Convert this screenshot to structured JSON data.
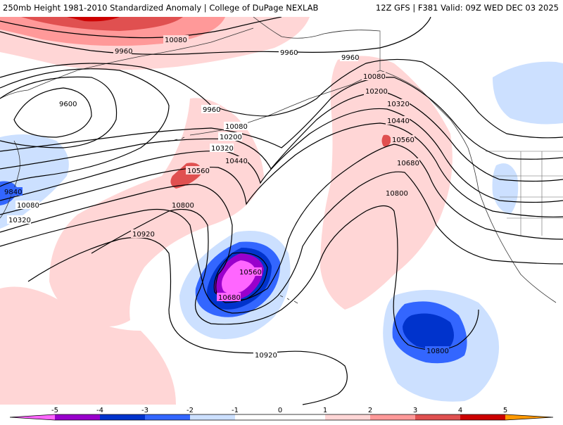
{
  "header": {
    "title_left": "250mb Height 1981-2010 Standardized Anomaly | College of DuPage NEXLAB",
    "title_right": "12Z GFS | F381 Valid: 09Z WED DEC 03 2025"
  },
  "colors": {
    "neg5": "#ff66ff",
    "neg4": "#9900cc",
    "neg3": "#0033cc",
    "neg2": "#3366ff",
    "neg1": "#cce0ff",
    "pos1": "#ffd6d6",
    "pos2": "#ff9999",
    "pos3": "#e05050",
    "pos4": "#cc0000",
    "pos5": "#ff9900"
  },
  "contour_labels": [
    {
      "id": "c10080-top",
      "text": "10080"
    },
    {
      "id": "c9960-left",
      "text": "9960"
    },
    {
      "id": "c9960-mid",
      "text": "9960"
    },
    {
      "id": "c9960-right",
      "text": "9960"
    },
    {
      "id": "c9600",
      "text": "9600"
    },
    {
      "id": "c9960-center",
      "text": "9960"
    },
    {
      "id": "c10080-center",
      "text": "10080"
    },
    {
      "id": "c10200-center",
      "text": "10200"
    },
    {
      "id": "c10320-center",
      "text": "10320"
    },
    {
      "id": "c10440-center",
      "text": "10440"
    },
    {
      "id": "c10560-center",
      "text": "10560"
    },
    {
      "id": "c9840-west",
      "text": "9840"
    },
    {
      "id": "c10080-west",
      "text": "10080"
    },
    {
      "id": "c10320-west",
      "text": "10320"
    },
    {
      "id": "c10800-center",
      "text": "10800"
    },
    {
      "id": "c10920-center",
      "text": "10920"
    },
    {
      "id": "c10560-low",
      "text": "10560"
    },
    {
      "id": "c10680-low",
      "text": "10680"
    },
    {
      "id": "c10920-south",
      "text": "10920"
    },
    {
      "id": "c10080-east",
      "text": "10080"
    },
    {
      "id": "c10200-east",
      "text": "10200"
    },
    {
      "id": "c10320-east",
      "text": "10320"
    },
    {
      "id": "c10440-east",
      "text": "10440"
    },
    {
      "id": "c10560-east",
      "text": "10560"
    },
    {
      "id": "c10680-east",
      "text": "10680"
    },
    {
      "id": "c10800-east",
      "text": "10800"
    },
    {
      "id": "c10800-se",
      "text": "10800"
    }
  ],
  "colorbar": {
    "ticks": [
      "-5",
      "-4",
      "-3",
      "-2",
      "-1",
      "0",
      "1",
      "2",
      "3",
      "4",
      "5"
    ]
  }
}
